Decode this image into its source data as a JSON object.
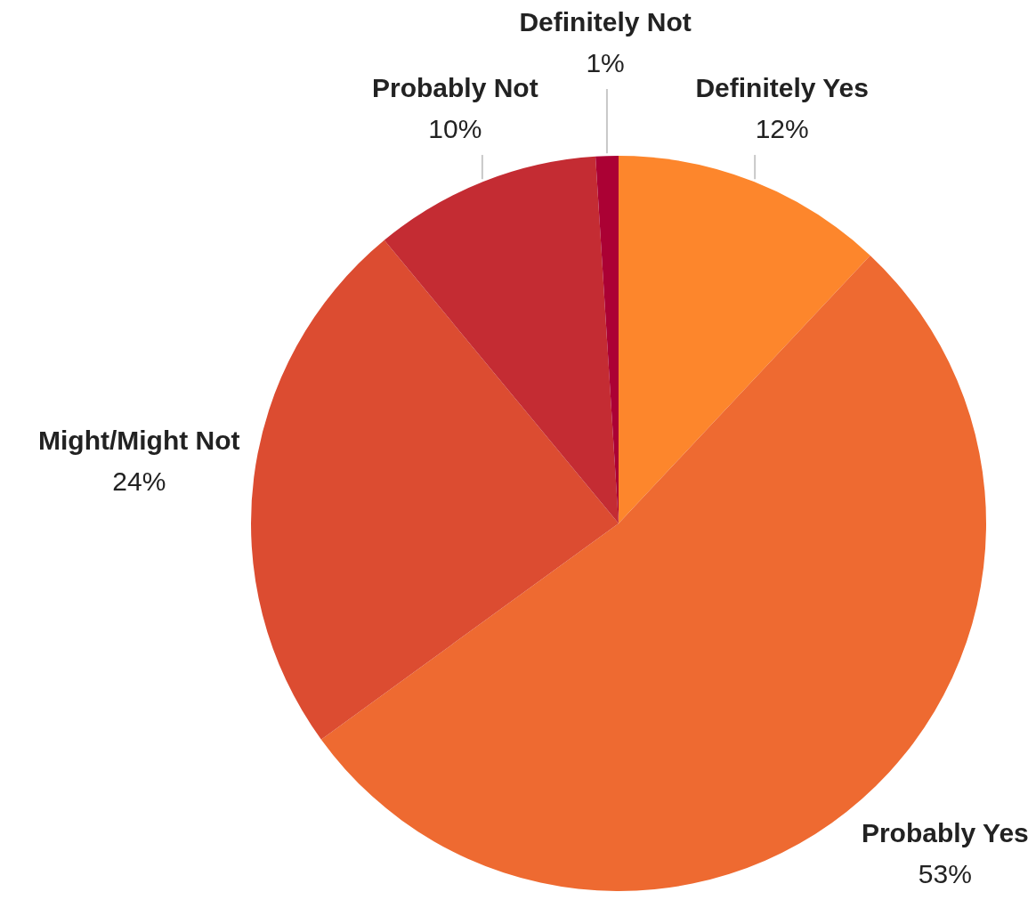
{
  "chart_data": {
    "type": "pie",
    "categories": [
      "Definitely Yes",
      "Probably Yes",
      "Might/Might Not",
      "Probably Not",
      "Definitely Not"
    ],
    "values": [
      12,
      53,
      24,
      10,
      1
    ],
    "colors": [
      "#fd862c",
      "#ee6a31",
      "#dc4c31",
      "#c42c33",
      "#ab0134"
    ],
    "value_labels": [
      "12%",
      "53%",
      "24%",
      "10%",
      "1%"
    ],
    "legend": false
  }
}
